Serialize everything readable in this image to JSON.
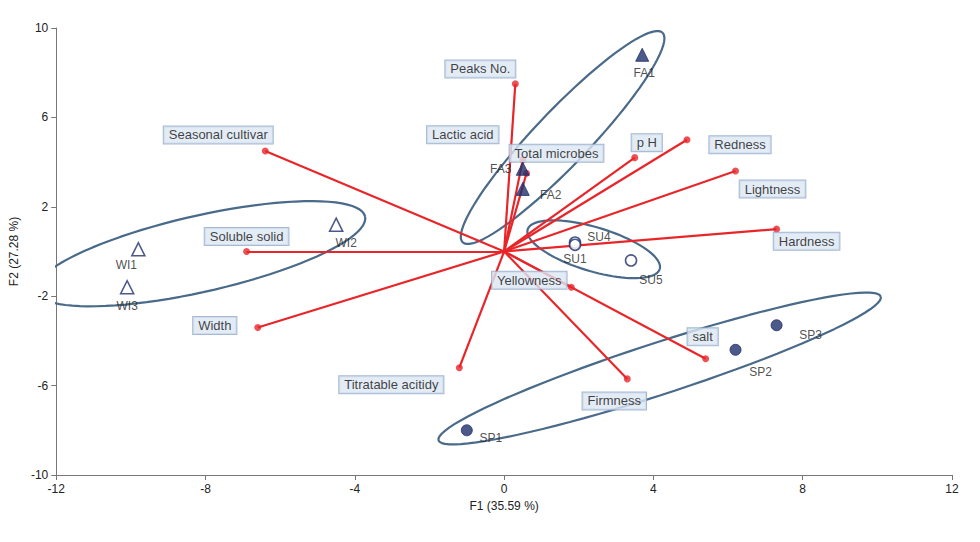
{
  "chart_data": {
    "type": "biplot",
    "x_label": "F1 (35.59 %)",
    "y_label": "F2 (27.28 %)",
    "xlim": [
      -12,
      12
    ],
    "xticks": [
      -12,
      -8,
      -4,
      0,
      4,
      8,
      12
    ],
    "ylim": [
      -10,
      10
    ],
    "yticks": [
      -10,
      -6,
      -2,
      2,
      6,
      10
    ],
    "grid": false,
    "observations": {
      "color": "#1f2f6b",
      "points": [
        {
          "label": "FA1",
          "x": 3.7,
          "y": 8.8,
          "marker": "triangle"
        },
        {
          "label": "FA2",
          "x": 0.5,
          "y": 2.8,
          "marker": "triangle"
        },
        {
          "label": "FA3",
          "x": 0.5,
          "y": 3.7,
          "marker": "triangle"
        },
        {
          "label": "WI1",
          "x": -9.8,
          "y": 0.1,
          "marker": "open-triangle"
        },
        {
          "label": "WI2",
          "x": -4.5,
          "y": 1.2,
          "marker": "open-triangle"
        },
        {
          "label": "WI3",
          "x": -10.1,
          "y": -1.6,
          "marker": "open-triangle"
        },
        {
          "label": "SU4",
          "x": 1.9,
          "y": 0.4,
          "marker": "open-circle"
        },
        {
          "label": "SU1",
          "x": 1.9,
          "y": 0.3,
          "marker": "open-circle"
        },
        {
          "label": "SU5",
          "x": 3.4,
          "y": -0.4,
          "marker": "open-circle"
        },
        {
          "label": "SP1",
          "x": -1.0,
          "y": -8.0,
          "marker": "circle"
        },
        {
          "label": "SP2",
          "x": 6.2,
          "y": -4.4,
          "marker": "circle"
        },
        {
          "label": "SP3",
          "x": 7.3,
          "y": -3.3,
          "marker": "circle"
        }
      ]
    },
    "variables": {
      "color": "#e8262a",
      "points": [
        {
          "label": "Peaks No.",
          "x": 0.3,
          "y": 7.5
        },
        {
          "label": "Seasonal cultivar",
          "x": -6.4,
          "y": 4.5
        },
        {
          "label": "Lactic acid",
          "x": 0.5,
          "y": 4.1
        },
        {
          "label": "Total microbes",
          "x": 0.6,
          "y": 3.5
        },
        {
          "label": "p H",
          "x": 3.5,
          "y": 4.2
        },
        {
          "label": "Redness",
          "x": 4.9,
          "y": 5.0
        },
        {
          "label": "Lightness",
          "x": 6.2,
          "y": 3.6
        },
        {
          "label": "Hardness",
          "x": 7.3,
          "y": 1.0
        },
        {
          "label": "Soluble solid",
          "x": -6.9,
          "y": 0.0
        },
        {
          "label": "Yellowness",
          "x": 1.8,
          "y": -1.6
        },
        {
          "label": "Width",
          "x": -6.6,
          "y": -3.4
        },
        {
          "label": "Titratable acitidy",
          "x": -1.2,
          "y": -5.2
        },
        {
          "label": "Firmness",
          "x": 3.3,
          "y": -5.7
        },
        {
          "label": "salt",
          "x": 5.4,
          "y": -4.8
        }
      ]
    }
  }
}
